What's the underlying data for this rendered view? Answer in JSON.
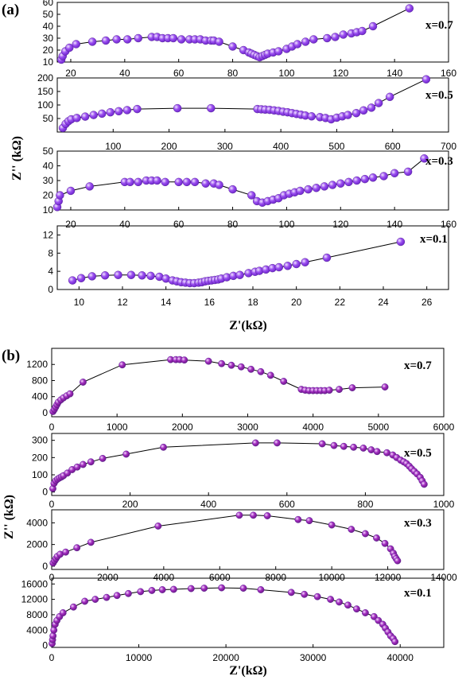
{
  "panels": [
    {
      "label": "(a)",
      "xlabel": "Z'(kΩ)",
      "ylabel": "Z'' (kΩ)"
    },
    {
      "label": "(b)",
      "xlabel": "Z'(kΩ)",
      "ylabel": "Z'' (kΩ)"
    }
  ],
  "colors": {
    "a_marker": "#9b4ff0",
    "a_marker_dark": "#6a22c9",
    "b_marker": "#a22ec0",
    "b_marker_dark": "#6b1685",
    "line": "#000000",
    "frame": "#000000"
  },
  "chart_data": [
    {
      "type": "scatter",
      "panel": "(a)",
      "annotation": "x=0.7",
      "xlim": [
        15,
        160
      ],
      "ylim": [
        10,
        60
      ],
      "xticks": [
        "20",
        "40",
        "60",
        "80",
        "100",
        "120",
        "140",
        "160"
      ],
      "yticks": [
        "10",
        "20",
        "30",
        "40",
        "50",
        "60"
      ],
      "x": [
        16.5,
        17,
        18,
        19.5,
        22,
        28,
        33,
        37,
        41,
        45,
        50,
        52,
        54,
        56,
        58,
        61,
        64,
        66,
        68,
        70,
        72,
        73,
        75,
        80,
        84,
        86,
        87,
        88,
        89,
        90,
        91,
        92,
        93,
        95,
        97,
        100,
        102,
        104,
        107,
        110,
        115,
        118,
        121,
        124,
        126,
        128,
        132,
        145.5
      ],
      "y": [
        12,
        15,
        19,
        22,
        25,
        27,
        28,
        29,
        29,
        30,
        31,
        31,
        30,
        30,
        30,
        29,
        29,
        29,
        29,
        28,
        28,
        28,
        27,
        23,
        20,
        18,
        17,
        16,
        15,
        14,
        15,
        16,
        17,
        18,
        19,
        21,
        23,
        25,
        27,
        29,
        30,
        31,
        33,
        34,
        35,
        36,
        40,
        55
      ]
    },
    {
      "type": "scatter",
      "panel": "(a)",
      "annotation": "x=0.5",
      "xlim": [
        0,
        700
      ],
      "ylim": [
        0,
        200
      ],
      "xticks": [
        "100",
        "200",
        "300",
        "400",
        "500",
        "600",
        "700"
      ],
      "yticks": [
        "50",
        "100",
        "150",
        "200"
      ],
      "x": [
        10,
        15,
        20,
        25,
        35,
        50,
        65,
        80,
        95,
        110,
        125,
        143,
        215,
        275,
        358,
        365,
        372,
        380,
        388,
        396,
        404,
        412,
        420,
        428,
        436,
        444,
        455,
        470,
        480,
        490,
        500,
        510,
        520,
        535,
        548,
        562,
        575,
        595,
        660
      ],
      "y": [
        15,
        30,
        40,
        47,
        52,
        57,
        63,
        68,
        73,
        77,
        81,
        85,
        88,
        88,
        85,
        84,
        83,
        82,
        80,
        78,
        75,
        73,
        70,
        67,
        64,
        61,
        58,
        55,
        52,
        47,
        53,
        58,
        63,
        70,
        80,
        90,
        107,
        130,
        195
      ]
    },
    {
      "type": "scatter",
      "panel": "(a)",
      "annotation": "x=0.3",
      "xlim": [
        15,
        160
      ],
      "ylim": [
        10,
        50
      ],
      "xticks": [
        "20",
        "40",
        "60",
        "80",
        "100",
        "120",
        "140",
        "160"
      ],
      "yticks": [
        "10",
        "20",
        "30",
        "40",
        "50"
      ],
      "x": [
        15,
        15.5,
        16,
        20,
        27,
        40,
        42,
        45,
        48,
        50,
        52,
        55,
        60,
        63,
        66,
        70,
        73,
        75,
        80,
        87,
        89,
        91,
        93,
        95,
        97,
        99,
        101,
        103,
        105,
        108,
        111,
        114,
        117,
        120,
        123,
        126,
        129,
        132,
        136,
        140,
        145,
        151
      ],
      "y": [
        12,
        16,
        20,
        23,
        26,
        29,
        29,
        29,
        30,
        30,
        30,
        29,
        29,
        29,
        29,
        28,
        28,
        27,
        24,
        20,
        16,
        15,
        16,
        17,
        18,
        20,
        21,
        22,
        23,
        24,
        25,
        26,
        27,
        28,
        29,
        30,
        31,
        32,
        33,
        35,
        36,
        45
      ]
    },
    {
      "type": "scatter",
      "panel": "(a)",
      "annotation": "x=0.1",
      "xlim": [
        9,
        27
      ],
      "ylim": [
        0,
        14
      ],
      "xticks": [
        "10",
        "12",
        "14",
        "16",
        "18",
        "20",
        "22",
        "24",
        "26"
      ],
      "yticks": [
        "0",
        "4",
        "8",
        "12"
      ],
      "x": [
        9.7,
        10.1,
        10.6,
        11.2,
        11.8,
        12.4,
        12.9,
        13.3,
        13.7,
        14.0,
        14.3,
        14.5,
        14.7,
        14.9,
        15.1,
        15.3,
        15.5,
        15.65,
        15.8,
        15.95,
        16.1,
        16.25,
        16.4,
        16.55,
        16.8,
        17.1,
        17.4,
        17.8,
        18.1,
        18.3,
        18.6,
        18.9,
        19.2,
        19.6,
        20.0,
        20.4,
        21.4,
        24.8
      ],
      "y": [
        2.0,
        2.5,
        2.9,
        3.1,
        3.2,
        3.2,
        3.1,
        3.0,
        2.8,
        2.4,
        2.0,
        1.8,
        1.6,
        1.5,
        1.4,
        1.4,
        1.5,
        1.6,
        1.8,
        1.9,
        2.0,
        2.1,
        2.2,
        2.4,
        2.7,
        3.0,
        3.2,
        3.6,
        3.9,
        4.1,
        4.4,
        4.7,
        4.9,
        5.2,
        5.6,
        6.0,
        7.0,
        10.5
      ]
    },
    {
      "type": "scatter",
      "panel": "(b)",
      "annotation": "x=0.7",
      "xlim": [
        0,
        6000
      ],
      "ylim": [
        -100,
        1600
      ],
      "xticks": [
        "0",
        "1000",
        "2000",
        "3000",
        "4000",
        "5000",
        "6000"
      ],
      "yticks": [
        "0",
        "400",
        "800",
        "1200"
      ],
      "x": [
        20,
        40,
        60,
        80,
        100,
        140,
        180,
        230,
        280,
        480,
        1080,
        1820,
        1900,
        1960,
        2030,
        2400,
        2600,
        2750,
        2900,
        3050,
        3200,
        3350,
        3550,
        3820,
        3880,
        3940,
        4000,
        4060,
        4120,
        4180,
        4250,
        4400,
        4600,
        5100
      ],
      "y": [
        30,
        80,
        140,
        200,
        260,
        320,
        370,
        420,
        470,
        760,
        1190,
        1320,
        1320,
        1320,
        1310,
        1280,
        1220,
        1180,
        1140,
        1080,
        1020,
        930,
        780,
        580,
        560,
        550,
        550,
        550,
        550,
        550,
        560,
        580,
        620,
        640
      ]
    },
    {
      "type": "scatter",
      "panel": "(b)",
      "annotation": "x=0.5",
      "xlim": [
        0,
        1000
      ],
      "ylim": [
        -20,
        340
      ],
      "xticks": [
        "0",
        "200",
        "400",
        "600",
        "800",
        "1000"
      ],
      "yticks": [
        "0",
        "100",
        "200",
        "300"
      ],
      "x": [
        3,
        6,
        10,
        15,
        20,
        25,
        30,
        40,
        52,
        65,
        80,
        100,
        130,
        190,
        285,
        520,
        575,
        690,
        720,
        745,
        770,
        795,
        815,
        830,
        855,
        870,
        880,
        890,
        898,
        905,
        912,
        918,
        925,
        932,
        940,
        945,
        950
      ],
      "y": [
        20,
        50,
        65,
        75,
        82,
        88,
        95,
        110,
        130,
        145,
        160,
        175,
        195,
        220,
        260,
        285,
        285,
        280,
        270,
        265,
        260,
        255,
        245,
        235,
        228,
        215,
        200,
        185,
        175,
        165,
        150,
        135,
        120,
        105,
        85,
        65,
        45
      ]
    },
    {
      "type": "scatter",
      "panel": "(b)",
      "annotation": "x=0.3",
      "xlim": [
        0,
        14000
      ],
      "ylim": [
        -300,
        5200
      ],
      "xticks": [
        "0",
        "2000",
        "4000",
        "6000",
        "8000",
        "10000",
        "12000",
        "14000"
      ],
      "yticks": [
        "0",
        "2000",
        "4000"
      ],
      "x": [
        50,
        100,
        150,
        200,
        300,
        500,
        900,
        1400,
        3800,
        6700,
        7200,
        7700,
        8800,
        9200,
        10000,
        10700,
        11200,
        11600,
        11900,
        12100,
        12200,
        12250,
        12300,
        12350
      ],
      "y": [
        300,
        500,
        700,
        900,
        1100,
        1300,
        1700,
        2200,
        3700,
        4700,
        4700,
        4650,
        4300,
        4200,
        3800,
        3400,
        3000,
        2600,
        2100,
        1600,
        1200,
        900,
        700,
        500
      ]
    },
    {
      "type": "scatter",
      "panel": "(b)",
      "annotation": "x=0.1",
      "xlim": [
        0,
        45000
      ],
      "ylim": [
        -500,
        17500
      ],
      "xticks": [
        "0",
        "10000",
        "20000",
        "30000",
        "40000"
      ],
      "yticks": [
        "0",
        "4000",
        "8000",
        "12000",
        "16000"
      ],
      "x": [
        50,
        100,
        150,
        250,
        400,
        600,
        900,
        1300,
        2500,
        3800,
        5000,
        6300,
        7500,
        8800,
        10200,
        11500,
        12700,
        14000,
        16000,
        17500,
        19500,
        22000,
        24000,
        27500,
        29000,
        30500,
        32000,
        33000,
        34000,
        35000,
        36000,
        37000,
        37500,
        38000,
        38300,
        38600,
        38900,
        39200,
        39400
      ],
      "y": [
        500,
        1500,
        2500,
        4000,
        5500,
        6500,
        7500,
        8500,
        10000,
        11500,
        12000,
        12500,
        13000,
        13500,
        14000,
        14300,
        14500,
        14600,
        14800,
        14900,
        15000,
        14900,
        14500,
        13800,
        13300,
        12700,
        12000,
        11300,
        10500,
        9500,
        8500,
        7500,
        6500,
        5500,
        4500,
        3500,
        2500,
        1800,
        1000
      ]
    }
  ]
}
